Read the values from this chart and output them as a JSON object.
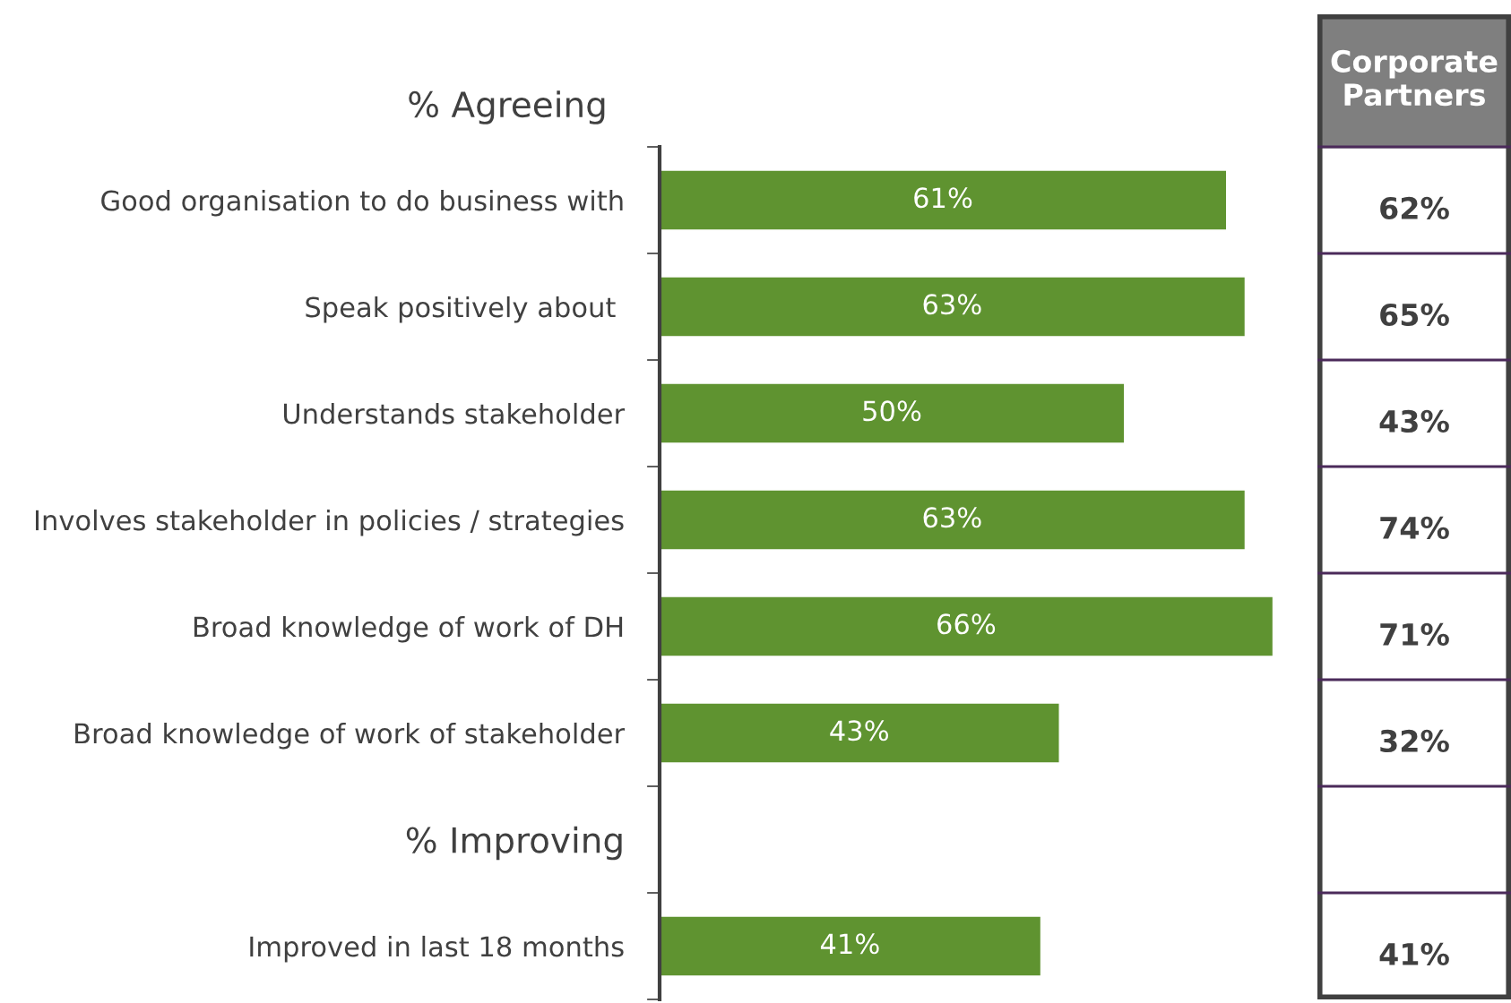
{
  "chart_data": [
    {
      "type": "bar",
      "orientation": "horizontal",
      "title": "% Agreeing",
      "categories": [
        "Good organisation to do business with",
        "Speak positively about ",
        "Understands stakeholder",
        "Involves stakeholder in policies / strategies",
        "Broad knowledge of work of DH",
        "Broad knowledge of work of stakeholder",
        "% Improving",
        "Improved in last 18 months"
      ],
      "values": [
        61,
        63,
        50,
        63,
        66,
        43,
        null,
        41
      ],
      "value_labels": [
        "61%",
        "63%",
        "50%",
        "63%",
        "66%",
        "43%",
        null,
        "41%"
      ],
      "color": "#5f9330",
      "tick_labels": "y"
    },
    {
      "type": "other",
      "title": "Corporate Partners",
      "values": [
        62,
        65,
        43,
        74,
        71,
        32,
        null,
        41
      ],
      "value_labels": [
        "62%",
        "65%",
        "43%",
        "74%",
        "71%",
        "32%",
        null,
        "41%"
      ]
    }
  ]
}
